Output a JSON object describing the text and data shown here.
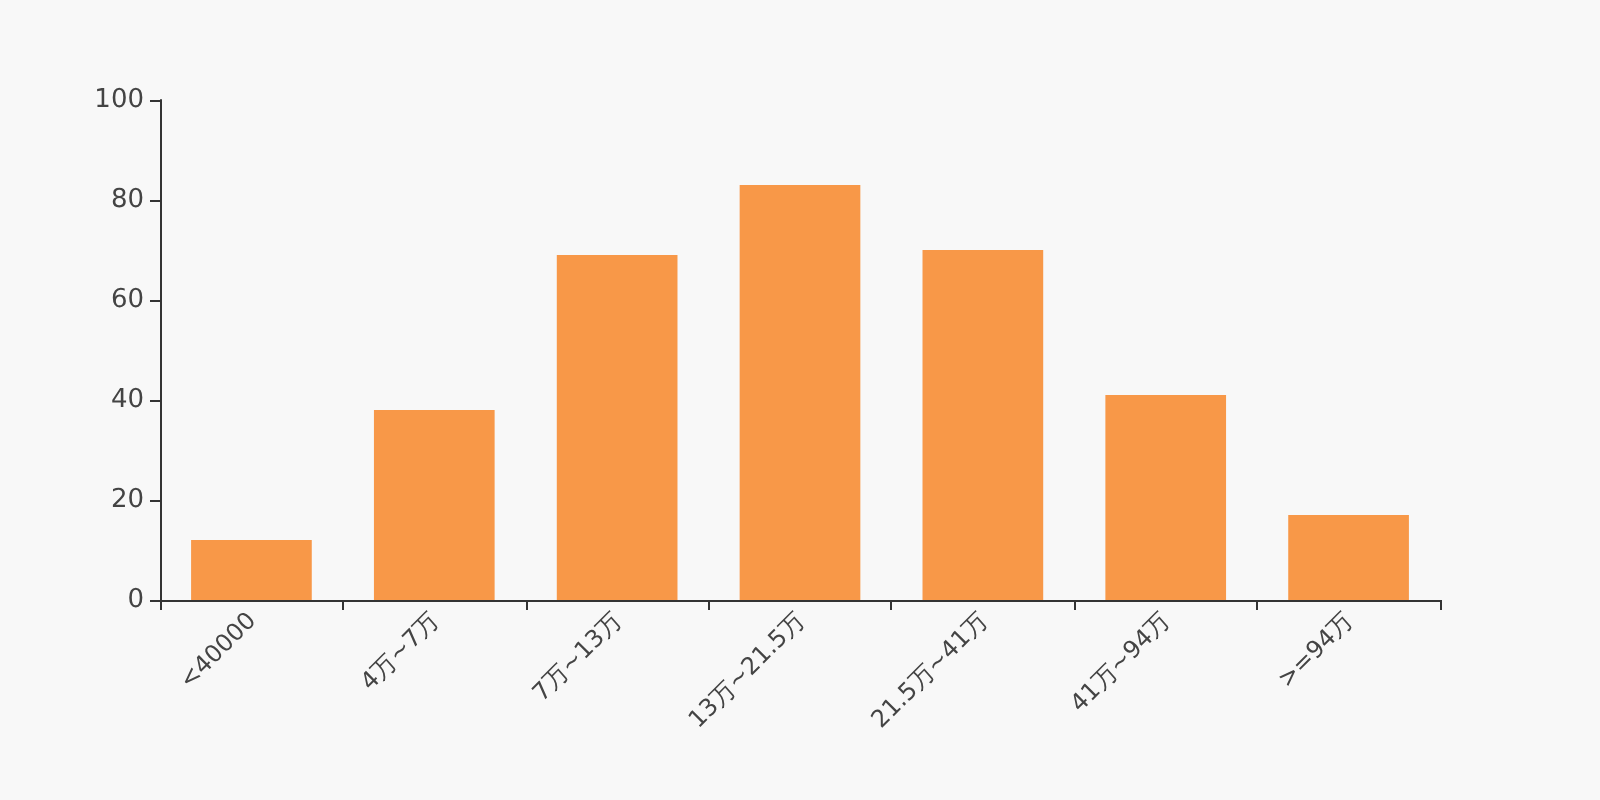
{
  "chart_data": {
    "type": "bar",
    "categories": [
      "<40000",
      "4万~7万",
      "7万~13万",
      "13万~21.5万",
      "21.5万~41万",
      "41万~94万",
      ">=94万"
    ],
    "values": [
      12,
      38,
      69,
      83,
      70,
      41,
      17
    ],
    "color": "#f89848",
    "ylim": [
      0,
      100
    ],
    "yticks": [
      0,
      20,
      40,
      60,
      80,
      100
    ],
    "grid": false
  }
}
